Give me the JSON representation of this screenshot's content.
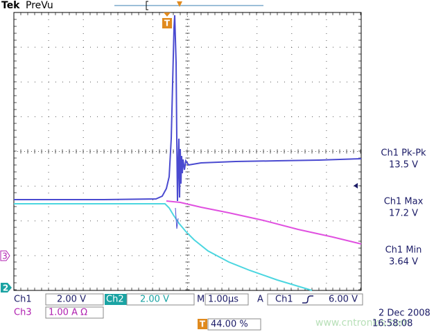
{
  "header": {
    "brand": "Tek",
    "status": "PreVu"
  },
  "markers": {
    "trigger": "T",
    "ch3": "3",
    "ch2": "2",
    "trigger_bottom": "T"
  },
  "measurements": [
    {
      "label": "Ch1 Pk-Pk",
      "value": "13.5 V"
    },
    {
      "label": "Ch1 Max",
      "value": "17.2 V"
    },
    {
      "label": "Ch1 Min",
      "value": "3.64 V"
    }
  ],
  "status_bar": {
    "ch1": "Ch1",
    "ch1_scale": "2.00 V",
    "ch2": "Ch2",
    "ch2_scale": "2.00 V",
    "timebase": "M",
    "timebase_scale": "1.00µs",
    "acq": "A",
    "trig_source": "Ch1",
    "trig_level": "6.00 V",
    "ch3": "Ch3",
    "ch3_scale": "1.00 A Ω",
    "trig_pos": "44.00 %",
    "date": "2 Dec 2008",
    "time": "16:58:08"
  },
  "watermark": "www.cntronics.com"
}
